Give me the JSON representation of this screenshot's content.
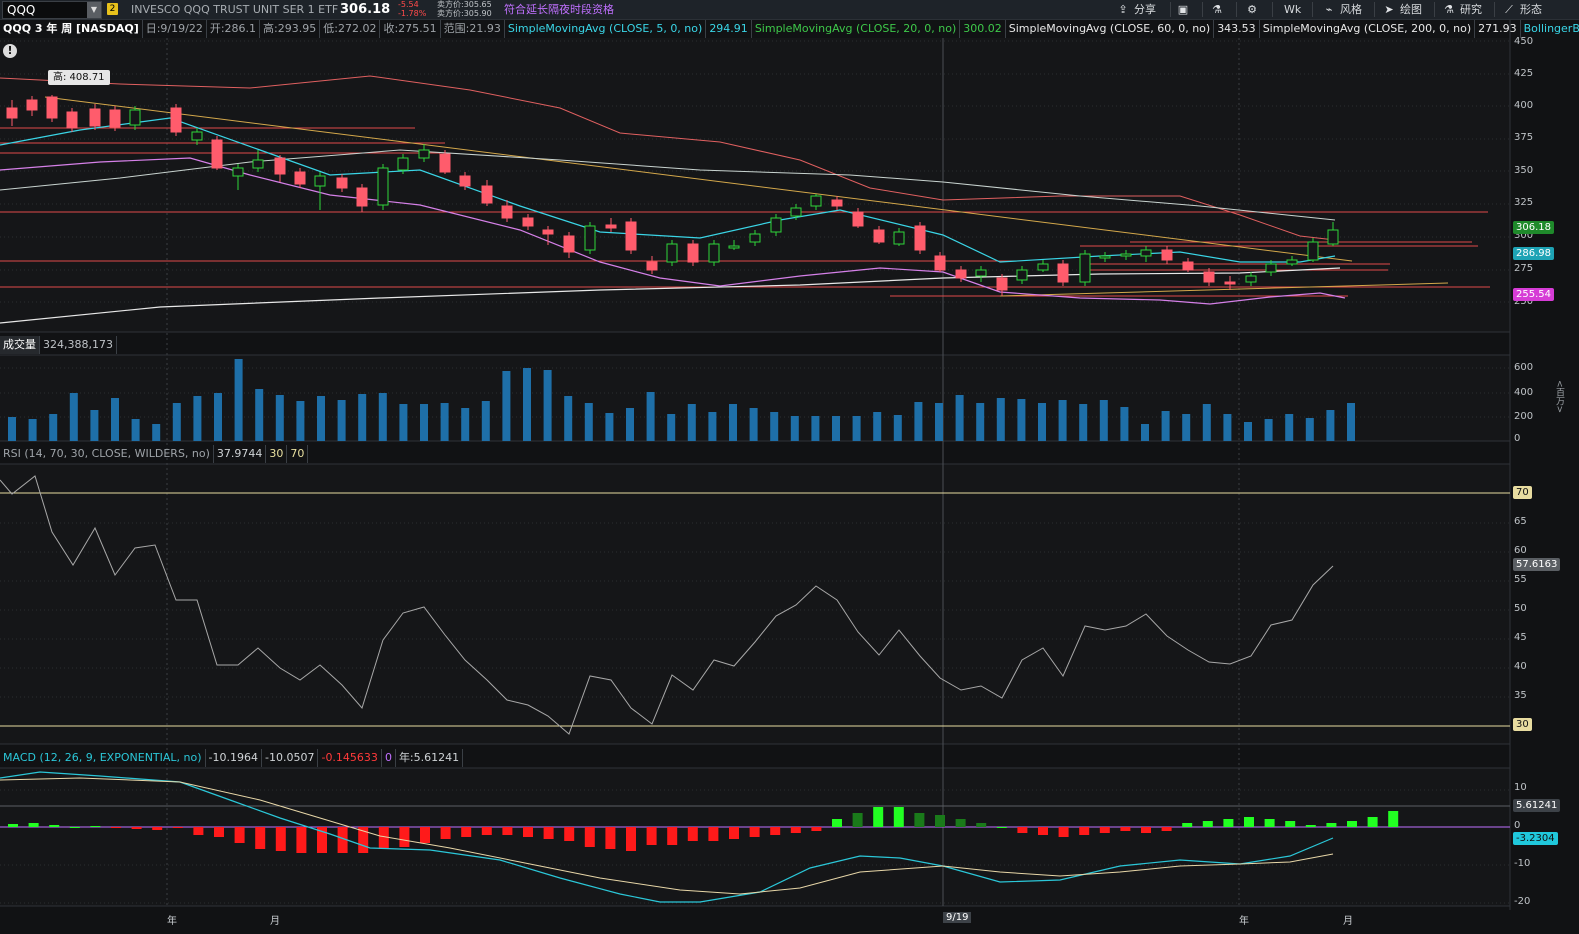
{
  "toolbar": {
    "symbol": "QQQ",
    "link_number": "2",
    "description": "INVESCO QQQ TRUST UNIT SER 1 ETF",
    "last_price": "306.18",
    "net_change": "-5.54",
    "pct_change": "-1.78%",
    "bid_label": "卖方价:305.65",
    "ask_label": "卖方价:305.90",
    "extended_hours": "符合延长隔夜时段资格",
    "share": "分享",
    "interval": "Wk",
    "style": "风格",
    "drawings": "绘图",
    "studies": "研究",
    "patterns": "形态"
  },
  "price_header": {
    "title": "QQQ 3 年 周 [NASDAQ]",
    "date": "日:9/19/22",
    "open": "开:286.1",
    "high": "高:293.95",
    "low": "低:272.02",
    "close": "收:275.51",
    "range": "范围:21.93",
    "sma5_label": "SimpleMovingAvg (CLOSE, 5, 0, no)",
    "sma5_value": "294.91",
    "sma20_label": "SimpleMovingAvg (CLOSE, 20, 0, no)",
    "sma20_value": "300.02",
    "sma60_label": "SimpleMovingAvg (CLOSE, 60, 0, no)",
    "sma60_value": "343.53",
    "sma200_label": "SimpleMovingAvg (CLOSE, 200, 0, no)",
    "sma200_value": "271.93",
    "bollinger_label": "BollingerBands ..."
  },
  "high_marker": "高: 408.71",
  "volume_header": {
    "label": "成交量",
    "value": "324,388,173"
  },
  "rsi_header": {
    "label": "RSI (14, 70, 30, CLOSE, WILDERS, no)",
    "value": "37.9744",
    "oversold": "30",
    "overbought": "70"
  },
  "macd_header": {
    "label": "MACD (12, 26, 9, EXPONENTIAL, no)",
    "value": "-10.1964",
    "avg": "-10.0507",
    "diff": "-0.145633",
    "zero": "0",
    "extra": "年:5.61241"
  },
  "price_axis": [
    "450",
    "425",
    "400",
    "375",
    "350",
    "325",
    "300",
    "275",
    "250"
  ],
  "volume_axis": [
    "600",
    "400",
    "200",
    "0"
  ],
  "volume_unit": "<百万>",
  "rsi_axis": [
    "65",
    "60",
    "55",
    "50",
    "45",
    "40",
    "35"
  ],
  "macd_axis": [
    "10",
    "0",
    "-10",
    "-20"
  ],
  "price_tags": {
    "last": "306.18",
    "sma_a": "286.98",
    "sma_b": "255.54"
  },
  "rsi_tags": {
    "upper": "70",
    "current": "57.6163",
    "lower": "30"
  },
  "macd_tags": {
    "value": "5.61241",
    "signal": "-3.2304"
  },
  "x_labels": {
    "year1": "年",
    "month1": "月",
    "cursor_date": "9/19",
    "year2": "年",
    "month2": "月"
  },
  "colors": {
    "up": "#2fd63a",
    "down": "#ff5c6c",
    "volume": "#1e6fa8",
    "sma5": "#3ad5e6",
    "sma20": "#d580e8",
    "sma60": "#c9d4d0",
    "sma200": "#e06060",
    "trend": "#d4a84b",
    "rsi": "#a8a8a8",
    "macd_line": "#2bc7d8",
    "macd_signal": "#e8d7a8",
    "hist_up": "#22ff22",
    "hist_down": "#ff1a1a"
  }
}
